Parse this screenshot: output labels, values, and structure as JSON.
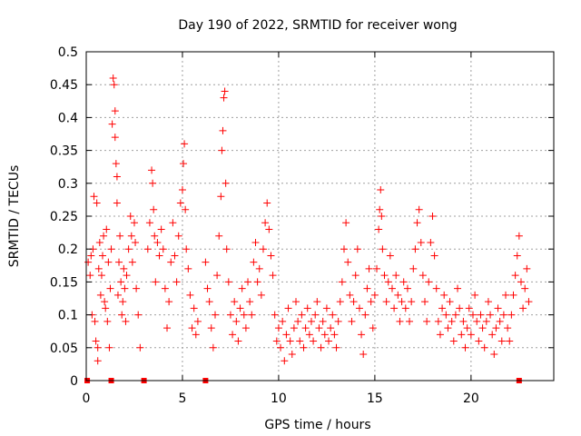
{
  "chart_data": {
    "type": "scatter",
    "title": "Day 190 of 2022, SRMTID for receiver wong",
    "xlabel": "GPS time / hours",
    "ylabel": "SRMTID / TECUs",
    "xlim": [
      0,
      24.3
    ],
    "ylim": [
      0,
      0.5
    ],
    "grid": true,
    "marker": "+",
    "series_color": "#ff0000",
    "xticks": [
      0,
      5,
      10,
      15,
      20
    ],
    "xtick_labels": [
      "0",
      "5",
      "10",
      "15",
      "20"
    ],
    "yticks": [
      0,
      0.05,
      0.1,
      0.15,
      0.2,
      0.25,
      0.3,
      0.35,
      0.4,
      0.45,
      0.5
    ],
    "ytick_labels": [
      "0",
      "0.05",
      "0.1",
      "0.15",
      "0.2",
      "0.25",
      "0.3",
      "0.35",
      "0.4",
      "0.45",
      "0.5"
    ],
    "zero_points_x": [
      0.05,
      1.3,
      3.0,
      6.2,
      22.5
    ],
    "points": [
      [
        0.1,
        0.18
      ],
      [
        0.2,
        0.16
      ],
      [
        0.25,
        0.19
      ],
      [
        0.3,
        0.1
      ],
      [
        0.35,
        0.2
      ],
      [
        0.4,
        0.28
      ],
      [
        0.45,
        0.09
      ],
      [
        0.5,
        0.06
      ],
      [
        0.55,
        0.27
      ],
      [
        0.6,
        0.05
      ],
      [
        0.6,
        0.03
      ],
      [
        0.65,
        0.17
      ],
      [
        0.7,
        0.21
      ],
      [
        0.75,
        0.13
      ],
      [
        0.8,
        0.16
      ],
      [
        0.85,
        0.19
      ],
      [
        0.9,
        0.22
      ],
      [
        0.95,
        0.12
      ],
      [
        1.0,
        0.11
      ],
      [
        1.05,
        0.23
      ],
      [
        1.1,
        0.09
      ],
      [
        1.15,
        0.18
      ],
      [
        1.2,
        0.05
      ],
      [
        1.25,
        0.14
      ],
      [
        1.3,
        0.2
      ],
      [
        1.35,
        0.39
      ],
      [
        1.4,
        0.46
      ],
      [
        1.45,
        0.45
      ],
      [
        1.5,
        0.41
      ],
      [
        1.5,
        0.37
      ],
      [
        1.55,
        0.33
      ],
      [
        1.6,
        0.31
      ],
      [
        1.6,
        0.27
      ],
      [
        1.65,
        0.13
      ],
      [
        1.7,
        0.18
      ],
      [
        1.75,
        0.22
      ],
      [
        1.8,
        0.15
      ],
      [
        1.85,
        0.1
      ],
      [
        1.9,
        0.12
      ],
      [
        1.95,
        0.17
      ],
      [
        2.0,
        0.14
      ],
      [
        2.05,
        0.09
      ],
      [
        2.1,
        0.16
      ],
      [
        2.2,
        0.2
      ],
      [
        2.3,
        0.25
      ],
      [
        2.35,
        0.22
      ],
      [
        2.4,
        0.18
      ],
      [
        2.5,
        0.24
      ],
      [
        2.55,
        0.21
      ],
      [
        2.6,
        0.14
      ],
      [
        2.7,
        0.1
      ],
      [
        2.8,
        0.05
      ],
      [
        3.2,
        0.2
      ],
      [
        3.3,
        0.24
      ],
      [
        3.4,
        0.32
      ],
      [
        3.45,
        0.3
      ],
      [
        3.5,
        0.26
      ],
      [
        3.55,
        0.22
      ],
      [
        3.6,
        0.15
      ],
      [
        3.7,
        0.21
      ],
      [
        3.8,
        0.19
      ],
      [
        3.9,
        0.23
      ],
      [
        4.0,
        0.2
      ],
      [
        4.1,
        0.14
      ],
      [
        4.2,
        0.08
      ],
      [
        4.3,
        0.12
      ],
      [
        4.4,
        0.18
      ],
      [
        4.5,
        0.24
      ],
      [
        4.6,
        0.19
      ],
      [
        4.7,
        0.15
      ],
      [
        4.8,
        0.22
      ],
      [
        4.9,
        0.27
      ],
      [
        5.0,
        0.29
      ],
      [
        5.05,
        0.33
      ],
      [
        5.1,
        0.36
      ],
      [
        5.15,
        0.26
      ],
      [
        5.2,
        0.2
      ],
      [
        5.3,
        0.17
      ],
      [
        5.4,
        0.13
      ],
      [
        5.5,
        0.08
      ],
      [
        5.6,
        0.11
      ],
      [
        5.7,
        0.07
      ],
      [
        5.8,
        0.09
      ],
      [
        6.2,
        0.18
      ],
      [
        6.3,
        0.14
      ],
      [
        6.4,
        0.12
      ],
      [
        6.5,
        0.08
      ],
      [
        6.6,
        0.05
      ],
      [
        6.7,
        0.1
      ],
      [
        6.8,
        0.16
      ],
      [
        6.9,
        0.22
      ],
      [
        7.0,
        0.28
      ],
      [
        7.05,
        0.35
      ],
      [
        7.1,
        0.38
      ],
      [
        7.15,
        0.43
      ],
      [
        7.2,
        0.44
      ],
      [
        7.25,
        0.3
      ],
      [
        7.3,
        0.2
      ],
      [
        7.4,
        0.15
      ],
      [
        7.5,
        0.1
      ],
      [
        7.6,
        0.07
      ],
      [
        7.7,
        0.12
      ],
      [
        7.8,
        0.09
      ],
      [
        7.9,
        0.06
      ],
      [
        8.0,
        0.11
      ],
      [
        8.1,
        0.14
      ],
      [
        8.2,
        0.1
      ],
      [
        8.3,
        0.08
      ],
      [
        8.4,
        0.15
      ],
      [
        8.5,
        0.12
      ],
      [
        8.6,
        0.1
      ],
      [
        8.7,
        0.18
      ],
      [
        8.8,
        0.21
      ],
      [
        8.9,
        0.15
      ],
      [
        9.0,
        0.17
      ],
      [
        9.1,
        0.13
      ],
      [
        9.2,
        0.2
      ],
      [
        9.3,
        0.24
      ],
      [
        9.4,
        0.27
      ],
      [
        9.5,
        0.23
      ],
      [
        9.6,
        0.19
      ],
      [
        9.7,
        0.16
      ],
      [
        9.8,
        0.1
      ],
      [
        9.9,
        0.06
      ],
      [
        10.0,
        0.08
      ],
      [
        10.1,
        0.05
      ],
      [
        10.2,
        0.09
      ],
      [
        10.3,
        0.03
      ],
      [
        10.4,
        0.07
      ],
      [
        10.5,
        0.11
      ],
      [
        10.6,
        0.06
      ],
      [
        10.7,
        0.04
      ],
      [
        10.8,
        0.08
      ],
      [
        10.9,
        0.12
      ],
      [
        11.0,
        0.09
      ],
      [
        11.1,
        0.06
      ],
      [
        11.2,
        0.1
      ],
      [
        11.3,
        0.05
      ],
      [
        11.4,
        0.08
      ],
      [
        11.5,
        0.11
      ],
      [
        11.6,
        0.07
      ],
      [
        11.7,
        0.09
      ],
      [
        11.8,
        0.06
      ],
      [
        11.9,
        0.1
      ],
      [
        12.0,
        0.12
      ],
      [
        12.1,
        0.08
      ],
      [
        12.2,
        0.05
      ],
      [
        12.3,
        0.09
      ],
      [
        12.4,
        0.07
      ],
      [
        12.5,
        0.11
      ],
      [
        12.6,
        0.06
      ],
      [
        12.7,
        0.08
      ],
      [
        12.8,
        0.1
      ],
      [
        12.9,
        0.07
      ],
      [
        13.0,
        0.05
      ],
      [
        13.1,
        0.09
      ],
      [
        13.2,
        0.12
      ],
      [
        13.3,
        0.15
      ],
      [
        13.4,
        0.2
      ],
      [
        13.5,
        0.24
      ],
      [
        13.6,
        0.18
      ],
      [
        13.7,
        0.13
      ],
      [
        13.8,
        0.09
      ],
      [
        13.9,
        0.12
      ],
      [
        14.0,
        0.16
      ],
      [
        14.1,
        0.2
      ],
      [
        14.2,
        0.11
      ],
      [
        14.3,
        0.07
      ],
      [
        14.4,
        0.04
      ],
      [
        14.5,
        0.1
      ],
      [
        14.6,
        0.14
      ],
      [
        14.7,
        0.17
      ],
      [
        14.8,
        0.12
      ],
      [
        14.9,
        0.08
      ],
      [
        15.0,
        0.13
      ],
      [
        15.1,
        0.17
      ],
      [
        15.2,
        0.23
      ],
      [
        15.25,
        0.26
      ],
      [
        15.3,
        0.29
      ],
      [
        15.35,
        0.25
      ],
      [
        15.4,
        0.2
      ],
      [
        15.5,
        0.16
      ],
      [
        15.6,
        0.12
      ],
      [
        15.7,
        0.15
      ],
      [
        15.8,
        0.19
      ],
      [
        15.9,
        0.14
      ],
      [
        16.0,
        0.11
      ],
      [
        16.1,
        0.16
      ],
      [
        16.2,
        0.13
      ],
      [
        16.3,
        0.09
      ],
      [
        16.4,
        0.12
      ],
      [
        16.5,
        0.15
      ],
      [
        16.6,
        0.11
      ],
      [
        16.7,
        0.14
      ],
      [
        16.8,
        0.09
      ],
      [
        16.9,
        0.12
      ],
      [
        17.0,
        0.17
      ],
      [
        17.1,
        0.2
      ],
      [
        17.2,
        0.24
      ],
      [
        17.3,
        0.26
      ],
      [
        17.4,
        0.21
      ],
      [
        17.5,
        0.16
      ],
      [
        17.6,
        0.12
      ],
      [
        17.7,
        0.09
      ],
      [
        17.8,
        0.15
      ],
      [
        17.9,
        0.21
      ],
      [
        18.0,
        0.25
      ],
      [
        18.1,
        0.19
      ],
      [
        18.2,
        0.14
      ],
      [
        18.3,
        0.09
      ],
      [
        18.4,
        0.07
      ],
      [
        18.5,
        0.11
      ],
      [
        18.6,
        0.13
      ],
      [
        18.7,
        0.1
      ],
      [
        18.8,
        0.08
      ],
      [
        18.9,
        0.12
      ],
      [
        19.0,
        0.09
      ],
      [
        19.1,
        0.06
      ],
      [
        19.2,
        0.1
      ],
      [
        19.3,
        0.14
      ],
      [
        19.4,
        0.11
      ],
      [
        19.5,
        0.07
      ],
      [
        19.6,
        0.09
      ],
      [
        19.7,
        0.05
      ],
      [
        19.8,
        0.08
      ],
      [
        19.9,
        0.11
      ],
      [
        20.0,
        0.07
      ],
      [
        20.1,
        0.1
      ],
      [
        20.2,
        0.13
      ],
      [
        20.3,
        0.09
      ],
      [
        20.4,
        0.06
      ],
      [
        20.5,
        0.1
      ],
      [
        20.6,
        0.08
      ],
      [
        20.7,
        0.05
      ],
      [
        20.8,
        0.09
      ],
      [
        20.9,
        0.12
      ],
      [
        21.0,
        0.1
      ],
      [
        21.1,
        0.07
      ],
      [
        21.2,
        0.04
      ],
      [
        21.3,
        0.08
      ],
      [
        21.4,
        0.11
      ],
      [
        21.5,
        0.09
      ],
      [
        21.6,
        0.06
      ],
      [
        21.7,
        0.1
      ],
      [
        21.8,
        0.13
      ],
      [
        21.9,
        0.08
      ],
      [
        22.0,
        0.06
      ],
      [
        22.1,
        0.1
      ],
      [
        22.2,
        0.13
      ],
      [
        22.3,
        0.16
      ],
      [
        22.4,
        0.19
      ],
      [
        22.5,
        0.22
      ],
      [
        22.6,
        0.15
      ],
      [
        22.7,
        0.11
      ],
      [
        22.8,
        0.14
      ],
      [
        22.9,
        0.17
      ],
      [
        23.0,
        0.12
      ]
    ]
  }
}
